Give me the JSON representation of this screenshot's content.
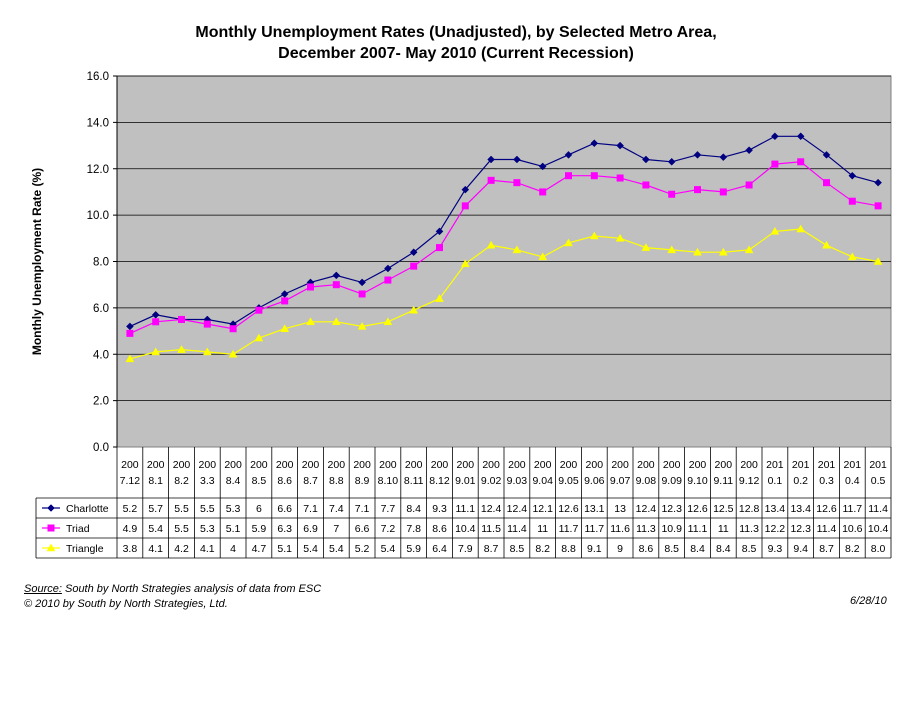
{
  "chart_data": {
    "type": "line",
    "title_lines": [
      "Monthly Unemployment Rates (Unadjusted), by Selected Metro Area,",
      "December 2007- May 2010 (Current Recession)"
    ],
    "ylabel": "Monthly Unemployment Rate (%)",
    "ylim": [
      0,
      16
    ],
    "yticks": [
      "0.0",
      "2.0",
      "4.0",
      "6.0",
      "8.0",
      "10.0",
      "12.0",
      "14.0",
      "16.0"
    ],
    "grid": true,
    "legend": "data-table",
    "categories": [
      [
        "200",
        "7.12"
      ],
      [
        "200",
        "8.1"
      ],
      [
        "200",
        "8.2"
      ],
      [
        "200",
        "3.3"
      ],
      [
        "200",
        "8.4"
      ],
      [
        "200",
        "8.5"
      ],
      [
        "200",
        "8.6"
      ],
      [
        "200",
        "8.7"
      ],
      [
        "200",
        "8.8"
      ],
      [
        "200",
        "8.9"
      ],
      [
        "200",
        "8.10"
      ],
      [
        "200",
        "8.11"
      ],
      [
        "200",
        "8.12"
      ],
      [
        "200",
        "9.01"
      ],
      [
        "200",
        "9.02"
      ],
      [
        "200",
        "9.03"
      ],
      [
        "200",
        "9.04"
      ],
      [
        "200",
        "9.05"
      ],
      [
        "200",
        "9.06"
      ],
      [
        "200",
        "9.07"
      ],
      [
        "200",
        "9.08"
      ],
      [
        "200",
        "9.09"
      ],
      [
        "200",
        "9.10"
      ],
      [
        "200",
        "9.11"
      ],
      [
        "200",
        "9.12"
      ],
      [
        "201",
        "0.1"
      ],
      [
        "201",
        "0.2"
      ],
      [
        "201",
        "0.3"
      ],
      [
        "201",
        "0.4"
      ],
      [
        "201",
        "0.5"
      ]
    ],
    "series": [
      {
        "name": "Charlotte",
        "color": "#000080",
        "marker": "diamond",
        "values": [
          5.2,
          5.7,
          5.5,
          5.5,
          5.3,
          6,
          6.6,
          7.1,
          7.4,
          7.1,
          7.7,
          8.4,
          9.3,
          11.1,
          12.4,
          12.4,
          12.1,
          12.6,
          13.1,
          13,
          12.4,
          12.3,
          12.6,
          12.5,
          12.8,
          13.4,
          13.4,
          12.6,
          11.7,
          11.4
        ],
        "labels": [
          "5.2",
          "5.7",
          "5.5",
          "5.5",
          "5.3",
          "6",
          "6.6",
          "7.1",
          "7.4",
          "7.1",
          "7.7",
          "8.4",
          "9.3",
          "11.1",
          "12.4",
          "12.4",
          "12.1",
          "12.6",
          "13.1",
          "13",
          "12.4",
          "12.3",
          "12.6",
          "12.5",
          "12.8",
          "13.4",
          "13.4",
          "12.6",
          "11.7",
          "11.4"
        ]
      },
      {
        "name": "Triad",
        "color": "#ff00ff",
        "marker": "square",
        "values": [
          4.9,
          5.4,
          5.5,
          5.3,
          5.1,
          5.9,
          6.3,
          6.9,
          7,
          6.6,
          7.2,
          7.8,
          8.6,
          10.4,
          11.5,
          11.4,
          11,
          11.7,
          11.7,
          11.6,
          11.3,
          10.9,
          11.1,
          11,
          11.3,
          12.2,
          12.3,
          11.4,
          10.6,
          10.4
        ],
        "labels": [
          "4.9",
          "5.4",
          "5.5",
          "5.3",
          "5.1",
          "5.9",
          "6.3",
          "6.9",
          "7",
          "6.6",
          "7.2",
          "7.8",
          "8.6",
          "10.4",
          "11.5",
          "11.4",
          "11",
          "11.7",
          "11.7",
          "11.6",
          "11.3",
          "10.9",
          "11.1",
          "11",
          "11.3",
          "12.2",
          "12.3",
          "11.4",
          "10.6",
          "10.4"
        ]
      },
      {
        "name": "Triangle",
        "color": "#ffff00",
        "marker": "triangle",
        "values": [
          3.8,
          4.1,
          4.2,
          4.1,
          4,
          4.7,
          5.1,
          5.4,
          5.4,
          5.2,
          5.4,
          5.9,
          6.4,
          7.9,
          8.7,
          8.5,
          8.2,
          8.8,
          9.1,
          9,
          8.6,
          8.5,
          8.4,
          8.4,
          8.5,
          9.3,
          9.4,
          8.7,
          8.2,
          8.0
        ],
        "labels": [
          "3.8",
          "4.1",
          "4.2",
          "4.1",
          "4",
          "4.7",
          "5.1",
          "5.4",
          "5.4",
          "5.2",
          "5.4",
          "5.9",
          "6.4",
          "7.9",
          "8.7",
          "8.5",
          "8.2",
          "8.8",
          "9.1",
          "9",
          "8.6",
          "8.5",
          "8.4",
          "8.4",
          "8.5",
          "9.3",
          "9.4",
          "8.7",
          "8.2",
          "8.0"
        ]
      }
    ],
    "plot_background": "#c0c0c0"
  },
  "footer": {
    "source_label": "Source:",
    "source_text": "South by North Strategies analysis of data from ESC",
    "copyright": "© 2010 by South by North Strategies, Ltd.",
    "date": "6/28/10"
  }
}
